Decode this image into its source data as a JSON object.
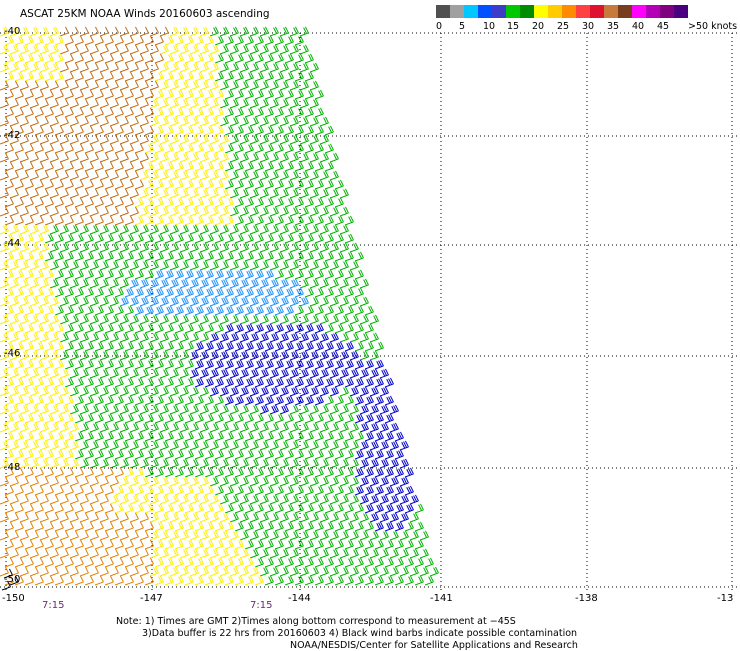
{
  "title": "ASCAT 25KM NOAA Winds 20160603 ascending",
  "colorbar": {
    "swatches": [
      "#505050",
      "#a0a0a0",
      "#00c8ff",
      "#0050ff",
      "#3c3cc8",
      "#00c800",
      "#008c00",
      "#ffff00",
      "#ffcc00",
      "#ff8c00",
      "#ff4040",
      "#e01030",
      "#c87a3c",
      "#7a3c1e",
      "#ff00ff",
      "#b400b4",
      "#800080",
      "#4b0082"
    ],
    "labels": [
      "0",
      "5",
      "10",
      "15",
      "20",
      "25",
      "30",
      "35",
      "40",
      "45",
      ">50 knots"
    ]
  },
  "lat_labels": [
    "-40",
    "-42",
    "-44",
    "-46",
    "-48",
    "-50"
  ],
  "lon_labels": [
    "-150",
    "-147",
    "-144",
    "-141",
    "-138",
    "-13"
  ],
  "time_labels": [
    "7:15",
    "7:15"
  ],
  "notes": [
    "Note: 1) Times are GMT 2)Times along bottom correspond to measurement at −45S",
    "3)Data buffer is 22 hrs from 20160603 4) Black wind barbs indicate possible contamination",
    "NOAA/NESDIS/Center for Satellite Applications and Research"
  ],
  "wind_speed_colors": {
    "light_blue": "#1e90ff",
    "blue": "#0000d0",
    "green": "#00b000",
    "yellow": "#ffee00",
    "orange": "#e08000",
    "brown": "#c06a10",
    "black": "#000000"
  }
}
